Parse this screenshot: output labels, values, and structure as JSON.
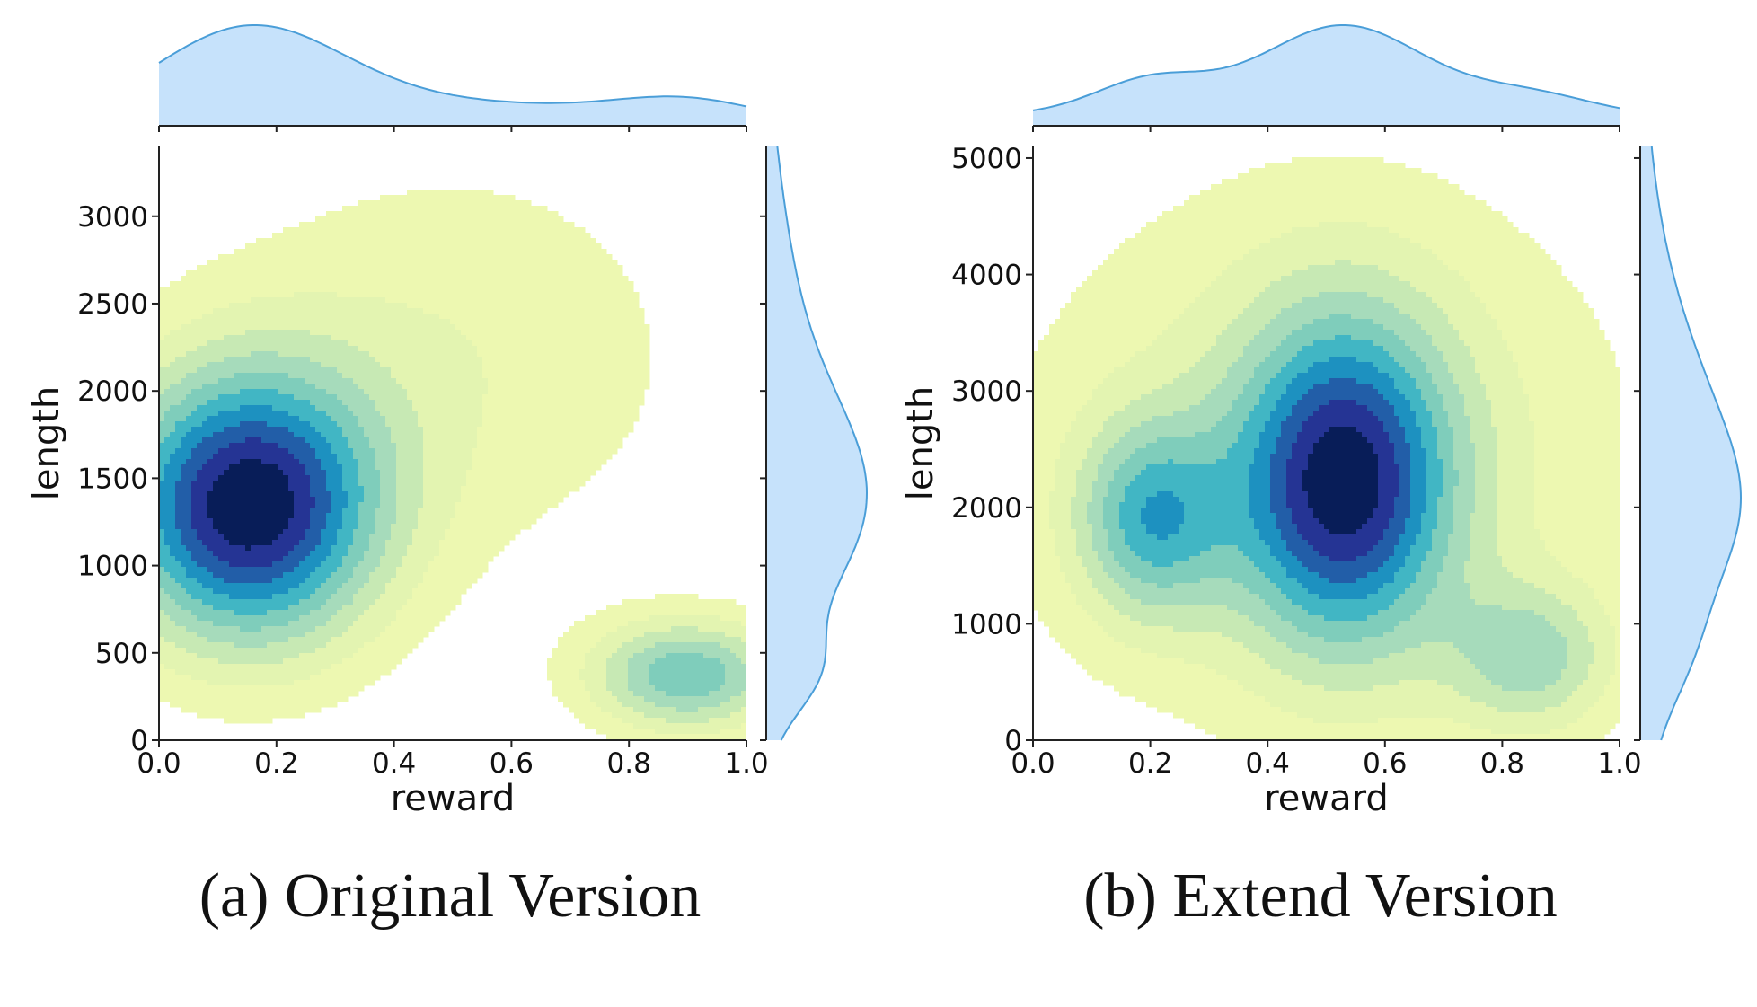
{
  "chart_data": [
    {
      "type": "kde-joint",
      "caption": "(a) Original Version",
      "xlabel": "reward",
      "ylabel": "length",
      "xlim": [
        0.0,
        1.0
      ],
      "ylim": [
        0,
        3400
      ],
      "x_ticks": [
        "0.0",
        "0.2",
        "0.4",
        "0.6",
        "0.8",
        "1.0"
      ],
      "y_ticks": [
        "0",
        "500",
        "1000",
        "1500",
        "2000",
        "2500",
        "3000"
      ],
      "x_tick_values": [
        0.0,
        0.2,
        0.4,
        0.6,
        0.8,
        1.0
      ],
      "y_tick_values": [
        0,
        500,
        1000,
        1500,
        2000,
        2500,
        3000
      ],
      "levels": 10,
      "density_peaks": [
        {
          "x": 0.15,
          "y": 1330,
          "sx": 0.16,
          "sy": 560,
          "w": 1.0
        },
        {
          "x": 0.9,
          "y": 370,
          "sx": 0.12,
          "sy": 230,
          "w": 0.55
        },
        {
          "x": 0.5,
          "y": 2200,
          "sx": 0.3,
          "sy": 850,
          "w": 0.18
        }
      ],
      "colors": [
        "#edf8b1",
        "#e3f4b1",
        "#c7e9b4",
        "#a6dbbb",
        "#7fcdbb",
        "#41b6c4",
        "#1d91c0",
        "#225ea8",
        "#253494",
        "#081d58"
      ],
      "marginal_color": "#c6e2fb",
      "marginal_line": "#4a9ed8"
    },
    {
      "type": "kde-joint",
      "caption": "(b) Extend Version",
      "xlabel": "reward",
      "ylabel": "length",
      "xlim": [
        0.0,
        1.0
      ],
      "ylim": [
        0,
        5100
      ],
      "x_ticks": [
        "0.0",
        "0.2",
        "0.4",
        "0.6",
        "0.8",
        "1.0"
      ],
      "y_ticks": [
        "0",
        "1000",
        "2000",
        "3000",
        "4000",
        "5000"
      ],
      "x_tick_values": [
        0.0,
        0.2,
        0.4,
        0.6,
        0.8,
        1.0
      ],
      "y_tick_values": [
        0,
        1000,
        2000,
        3000,
        4000,
        5000
      ],
      "levels": 10,
      "density_peaks": [
        {
          "x": 0.53,
          "y": 2200,
          "sx": 0.13,
          "sy": 1000,
          "w": 1.0
        },
        {
          "x": 0.2,
          "y": 1900,
          "sx": 0.09,
          "sy": 600,
          "w": 0.6
        },
        {
          "x": 0.85,
          "y": 700,
          "sx": 0.1,
          "sy": 450,
          "w": 0.45
        },
        {
          "x": 0.5,
          "y": 2500,
          "sx": 0.38,
          "sy": 1700,
          "w": 0.3
        }
      ],
      "colors": [
        "#edf8b1",
        "#e3f4b1",
        "#c7e9b4",
        "#a6dbbb",
        "#7fcdbb",
        "#41b6c4",
        "#1d91c0",
        "#225ea8",
        "#253494",
        "#081d58"
      ],
      "marginal_color": "#c6e2fb",
      "marginal_line": "#4a9ed8"
    }
  ]
}
